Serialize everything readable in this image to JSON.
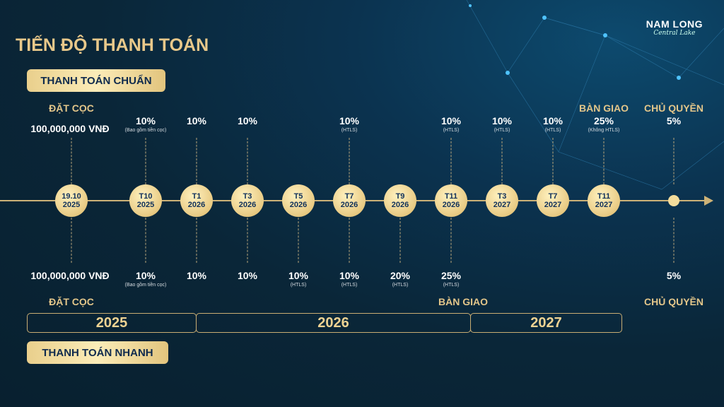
{
  "title": "TIẾN ĐỘ THANH TOÁN",
  "logo": {
    "name": "NAM LONG",
    "subtitle": "Central Lake"
  },
  "plans": {
    "standard": "THANH TOÁN CHUẨN",
    "fast": "THANH TOÁN NHANH"
  },
  "colors": {
    "gold": "#e3c68a",
    "background": "#0b2434",
    "node": "#e8ca83"
  },
  "nodes": [
    {
      "label": "19.10\n2025",
      "top": {
        "header": "ĐẶT CỌC",
        "value": "100,000,000 VNĐ"
      },
      "bottom": {
        "value": "100,000,000 VNĐ",
        "footer": "ĐẶT CỌC"
      }
    },
    {
      "label": "T10\n2025",
      "top": {
        "value": "10%",
        "note": "(Bao gồm tiền cọc)"
      },
      "bottom": {
        "value": "10%",
        "note": "(Bao gồm tiền cọc)"
      }
    },
    {
      "label": "T1\n2026",
      "top": {
        "value": "10%"
      },
      "bottom": {
        "value": "10%"
      }
    },
    {
      "label": "T3\n2026",
      "top": {
        "value": "10%"
      },
      "bottom": {
        "value": "10%"
      }
    },
    {
      "label": "T5\n2026",
      "bottom": {
        "value": "10%",
        "note": "(HTLS)"
      }
    },
    {
      "label": "T7\n2026",
      "top": {
        "value": "10%",
        "note": "(HTLS)"
      },
      "bottom": {
        "value": "10%",
        "note": "(HTLS)"
      }
    },
    {
      "label": "T9\n2026",
      "bottom": {
        "value": "20%",
        "note": "(HTLS)"
      }
    },
    {
      "label": "T11\n2026",
      "top": {
        "value": "10%",
        "note": "(HTLS)"
      },
      "bottom": {
        "value": "25%",
        "note": "(HTLS)",
        "footer": "BÀN GIAO"
      }
    },
    {
      "label": "T3\n2027",
      "top": {
        "value": "10%",
        "note": "(HTLS)"
      }
    },
    {
      "label": "T7\n2027",
      "top": {
        "value": "10%",
        "note": "(HTLS)"
      }
    },
    {
      "label": "T11\n2027",
      "top": {
        "header": "BÀN GIAO",
        "value": "25%",
        "note": "(Không HTLS)"
      }
    },
    {
      "label": "",
      "top": {
        "header": "CHỦ QUYỀN",
        "value": "5%"
      },
      "bottom": {
        "value": "5%",
        "footer": "CHỦ QUYỀN"
      }
    }
  ],
  "years": [
    "2025",
    "2026",
    "2027"
  ]
}
